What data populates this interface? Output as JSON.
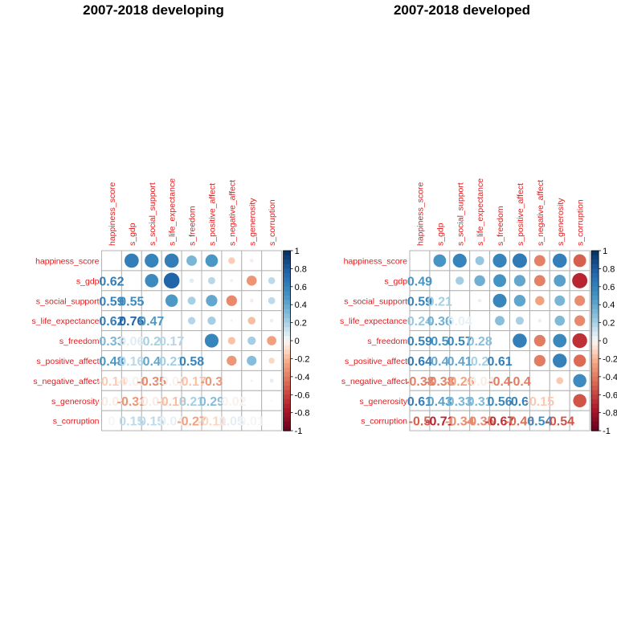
{
  "chart_data": [
    {
      "type": "heatmap",
      "subtype": "correlation-matrix (upper: circles, lower: numbers)",
      "title": "2007-2018 developing",
      "variables": [
        "happiness_score",
        "s_gdp",
        "s_social_support",
        "s_life_expectance",
        "s_freedom",
        "s_positive_affect",
        "s_negative_affect",
        "s_generosity",
        "s_corruption"
      ],
      "matrix": [
        [
          1,
          0.62,
          0.59,
          0.62,
          0.33,
          0.48,
          -0.14,
          -0.04,
          0.0
        ],
        [
          0.62,
          1,
          0.55,
          0.76,
          0.06,
          0.16,
          -0.03,
          -0.31,
          0.15
        ],
        [
          0.59,
          0.55,
          1,
          0.47,
          0.2,
          0.4,
          -0.35,
          -0.04,
          0.15
        ],
        [
          0.62,
          0.76,
          0.47,
          1,
          0.17,
          0.21,
          -0.02,
          -0.18,
          0.04
        ],
        [
          0.33,
          0.06,
          0.2,
          0.17,
          1,
          0.58,
          -0.17,
          0.21,
          -0.27
        ],
        [
          0.48,
          0.16,
          0.4,
          0.21,
          0.58,
          1,
          -0.3,
          0.29,
          -0.11
        ],
        [
          -0.14,
          -0.03,
          -0.35,
          -0.02,
          -0.17,
          -0.3,
          1,
          -0.02,
          0.05
        ],
        [
          -0.04,
          -0.31,
          -0.04,
          -0.18,
          0.21,
          0.29,
          -0.02,
          1,
          0.01
        ],
        [
          0.0,
          0.15,
          0.15,
          0.04,
          -0.27,
          -0.11,
          0.05,
          0.01,
          1
        ]
      ],
      "colorbar_ticks": [
        "1",
        "0.8",
        "0.6",
        "0.4",
        "0.2",
        "0",
        "-0.2",
        "-0.4",
        "-0.6",
        "-0.8",
        "-1"
      ]
    },
    {
      "type": "heatmap",
      "subtype": "correlation-matrix (upper: circles, lower: numbers)",
      "title": "2007-2018 developed",
      "variables": [
        "happiness_score",
        "s_gdp",
        "s_social_support",
        "s_life_expectance",
        "s_freedom",
        "s_positive_affect",
        "s_negative_affect",
        "s_generosity",
        "s_corruption"
      ],
      "matrix": [
        [
          1,
          0.49,
          0.59,
          0.24,
          0.59,
          0.64,
          -0.38,
          0.61,
          -0.5
        ],
        [
          0.49,
          1,
          0.21,
          0.36,
          0.5,
          0.4,
          -0.38,
          0.43,
          -0.71
        ],
        [
          0.59,
          0.21,
          1,
          0.04,
          0.57,
          0.41,
          -0.26,
          0.33,
          -0.34
        ],
        [
          0.24,
          0.36,
          0.04,
          1,
          0.28,
          0.2,
          -0.04,
          0.31,
          -0.35
        ],
        [
          0.59,
          0.5,
          0.57,
          0.28,
          1,
          0.61,
          -0.4,
          0.56,
          -0.67
        ],
        [
          0.64,
          0.4,
          0.41,
          0.2,
          0.61,
          1,
          -0.4,
          0.6,
          -0.46
        ],
        [
          -0.38,
          -0.38,
          -0.26,
          -0.04,
          -0.4,
          -0.4,
          1,
          -0.15,
          0.54
        ],
        [
          0.61,
          0.43,
          0.33,
          0.31,
          0.56,
          0.6,
          -0.15,
          1,
          -0.54
        ],
        [
          -0.5,
          -0.71,
          -0.34,
          -0.35,
          -0.67,
          -0.46,
          0.54,
          -0.54,
          1
        ]
      ],
      "colorbar_ticks": [
        "1",
        "0.8",
        "0.6",
        "0.4",
        "0.2",
        "0",
        "-0.2",
        "-0.4",
        "-0.6",
        "-0.8",
        "-1"
      ]
    }
  ]
}
